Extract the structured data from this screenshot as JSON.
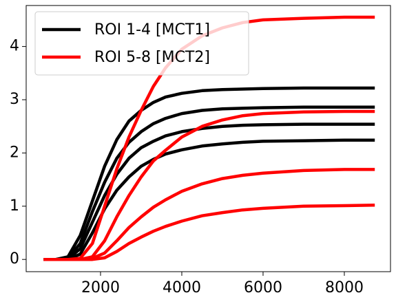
{
  "chart_data": {
    "type": "line",
    "x": [
      600,
      900,
      1200,
      1500,
      1800,
      2100,
      2400,
      2700,
      3000,
      3300,
      3600,
      4000,
      4500,
      5000,
      5500,
      6000,
      7000,
      8000,
      8750
    ],
    "series": [
      {
        "name": "ROI 1-4 [MCT1]",
        "color": "#000000",
        "values": [
          0,
          0,
          0.05,
          0.45,
          1.1,
          1.75,
          2.25,
          2.6,
          2.8,
          2.95,
          3.05,
          3.12,
          3.17,
          3.19,
          3.2,
          3.21,
          3.22,
          3.22,
          3.22
        ]
      },
      {
        "color": "#000000",
        "values": [
          0,
          0,
          0.02,
          0.3,
          0.9,
          1.45,
          1.9,
          2.2,
          2.4,
          2.55,
          2.65,
          2.74,
          2.8,
          2.83,
          2.84,
          2.85,
          2.86,
          2.86,
          2.86
        ]
      },
      {
        "color": "#000000",
        "values": [
          0,
          0,
          0.01,
          0.2,
          0.7,
          1.2,
          1.6,
          1.9,
          2.1,
          2.22,
          2.32,
          2.4,
          2.46,
          2.5,
          2.52,
          2.53,
          2.54,
          2.54,
          2.54
        ]
      },
      {
        "color": "#000000",
        "values": [
          0,
          0,
          0,
          0.1,
          0.5,
          0.95,
          1.3,
          1.55,
          1.75,
          1.88,
          1.98,
          2.06,
          2.13,
          2.17,
          2.2,
          2.22,
          2.23,
          2.24,
          2.24
        ]
      },
      {
        "name": "ROI 5-8 [MCT2]",
        "color": "#ff0000",
        "values": [
          0,
          0,
          0,
          0.02,
          0.3,
          1.0,
          1.7,
          2.3,
          2.8,
          3.25,
          3.6,
          3.95,
          4.2,
          4.35,
          4.45,
          4.5,
          4.53,
          4.55,
          4.55
        ]
      },
      {
        "color": "#ff0000",
        "values": [
          0,
          0,
          0,
          0,
          0.05,
          0.35,
          0.8,
          1.2,
          1.55,
          1.85,
          2.05,
          2.3,
          2.5,
          2.62,
          2.7,
          2.74,
          2.77,
          2.78,
          2.78
        ]
      },
      {
        "color": "#ff0000",
        "values": [
          0,
          0,
          0,
          0,
          0.02,
          0.12,
          0.35,
          0.6,
          0.8,
          0.98,
          1.12,
          1.28,
          1.42,
          1.52,
          1.58,
          1.62,
          1.67,
          1.69,
          1.69
        ]
      },
      {
        "color": "#ff0000",
        "values": [
          0,
          0,
          0,
          0,
          0,
          0.03,
          0.15,
          0.3,
          0.42,
          0.53,
          0.62,
          0.72,
          0.82,
          0.88,
          0.93,
          0.96,
          1.0,
          1.01,
          1.02
        ]
      }
    ],
    "xlim": [
      170,
      9136
    ],
    "ylim": [
      -0.23,
      4.77
    ],
    "xticks": [
      2000,
      4000,
      6000,
      8000
    ],
    "yticks": [
      0,
      1,
      2,
      3,
      4
    ],
    "grid": false,
    "legend": "upper left"
  }
}
